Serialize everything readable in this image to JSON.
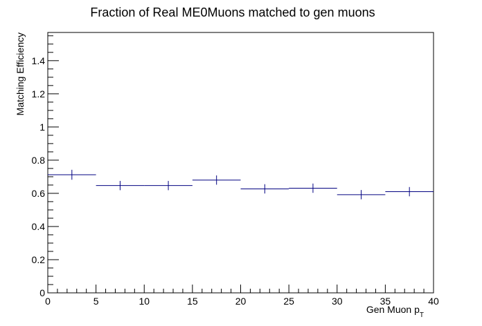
{
  "chart_data": {
    "type": "scatter",
    "title": "Fraction of Real ME0Muons matched to gen muons",
    "xlabel": "Gen Muon p",
    "xlabel_sub": "T",
    "ylabel": "Matching Efficiency",
    "xlim": [
      0,
      40
    ],
    "ylim": [
      0,
      1.57
    ],
    "grid": false,
    "x_ticks": [
      0,
      5,
      10,
      15,
      20,
      25,
      30,
      35,
      40
    ],
    "x_tick_labels": [
      "0",
      "5",
      "10",
      "15",
      "20",
      "25",
      "30",
      "35",
      "40"
    ],
    "y_ticks": [
      0,
      0.2,
      0.4,
      0.6,
      0.8,
      1,
      1.2,
      1.4
    ],
    "y_tick_labels": [
      "0",
      "0.2",
      "0.4",
      "0.6",
      "0.8",
      "1",
      "1.2",
      "1.4"
    ],
    "series": [
      {
        "color": "#000080",
        "points": [
          {
            "x": 2.5,
            "xlow": 0,
            "xhigh": 5,
            "y": 0.712,
            "ylow": 0.682,
            "yhigh": 0.742
          },
          {
            "x": 7.5,
            "xlow": 5,
            "xhigh": 10,
            "y": 0.647,
            "ylow": 0.619,
            "yhigh": 0.675
          },
          {
            "x": 12.5,
            "xlow": 10,
            "xhigh": 15,
            "y": 0.647,
            "ylow": 0.619,
            "yhigh": 0.675
          },
          {
            "x": 17.5,
            "xlow": 15,
            "xhigh": 20,
            "y": 0.68,
            "ylow": 0.652,
            "yhigh": 0.708
          },
          {
            "x": 22.5,
            "xlow": 20,
            "xhigh": 25,
            "y": 0.627,
            "ylow": 0.599,
            "yhigh": 0.655
          },
          {
            "x": 27.5,
            "xlow": 25,
            "xhigh": 30,
            "y": 0.631,
            "ylow": 0.603,
            "yhigh": 0.659
          },
          {
            "x": 32.5,
            "xlow": 30,
            "xhigh": 35,
            "y": 0.592,
            "ylow": 0.564,
            "yhigh": 0.62
          },
          {
            "x": 37.5,
            "xlow": 35,
            "xhigh": 40,
            "y": 0.61,
            "ylow": 0.582,
            "yhigh": 0.638
          }
        ]
      }
    ]
  }
}
